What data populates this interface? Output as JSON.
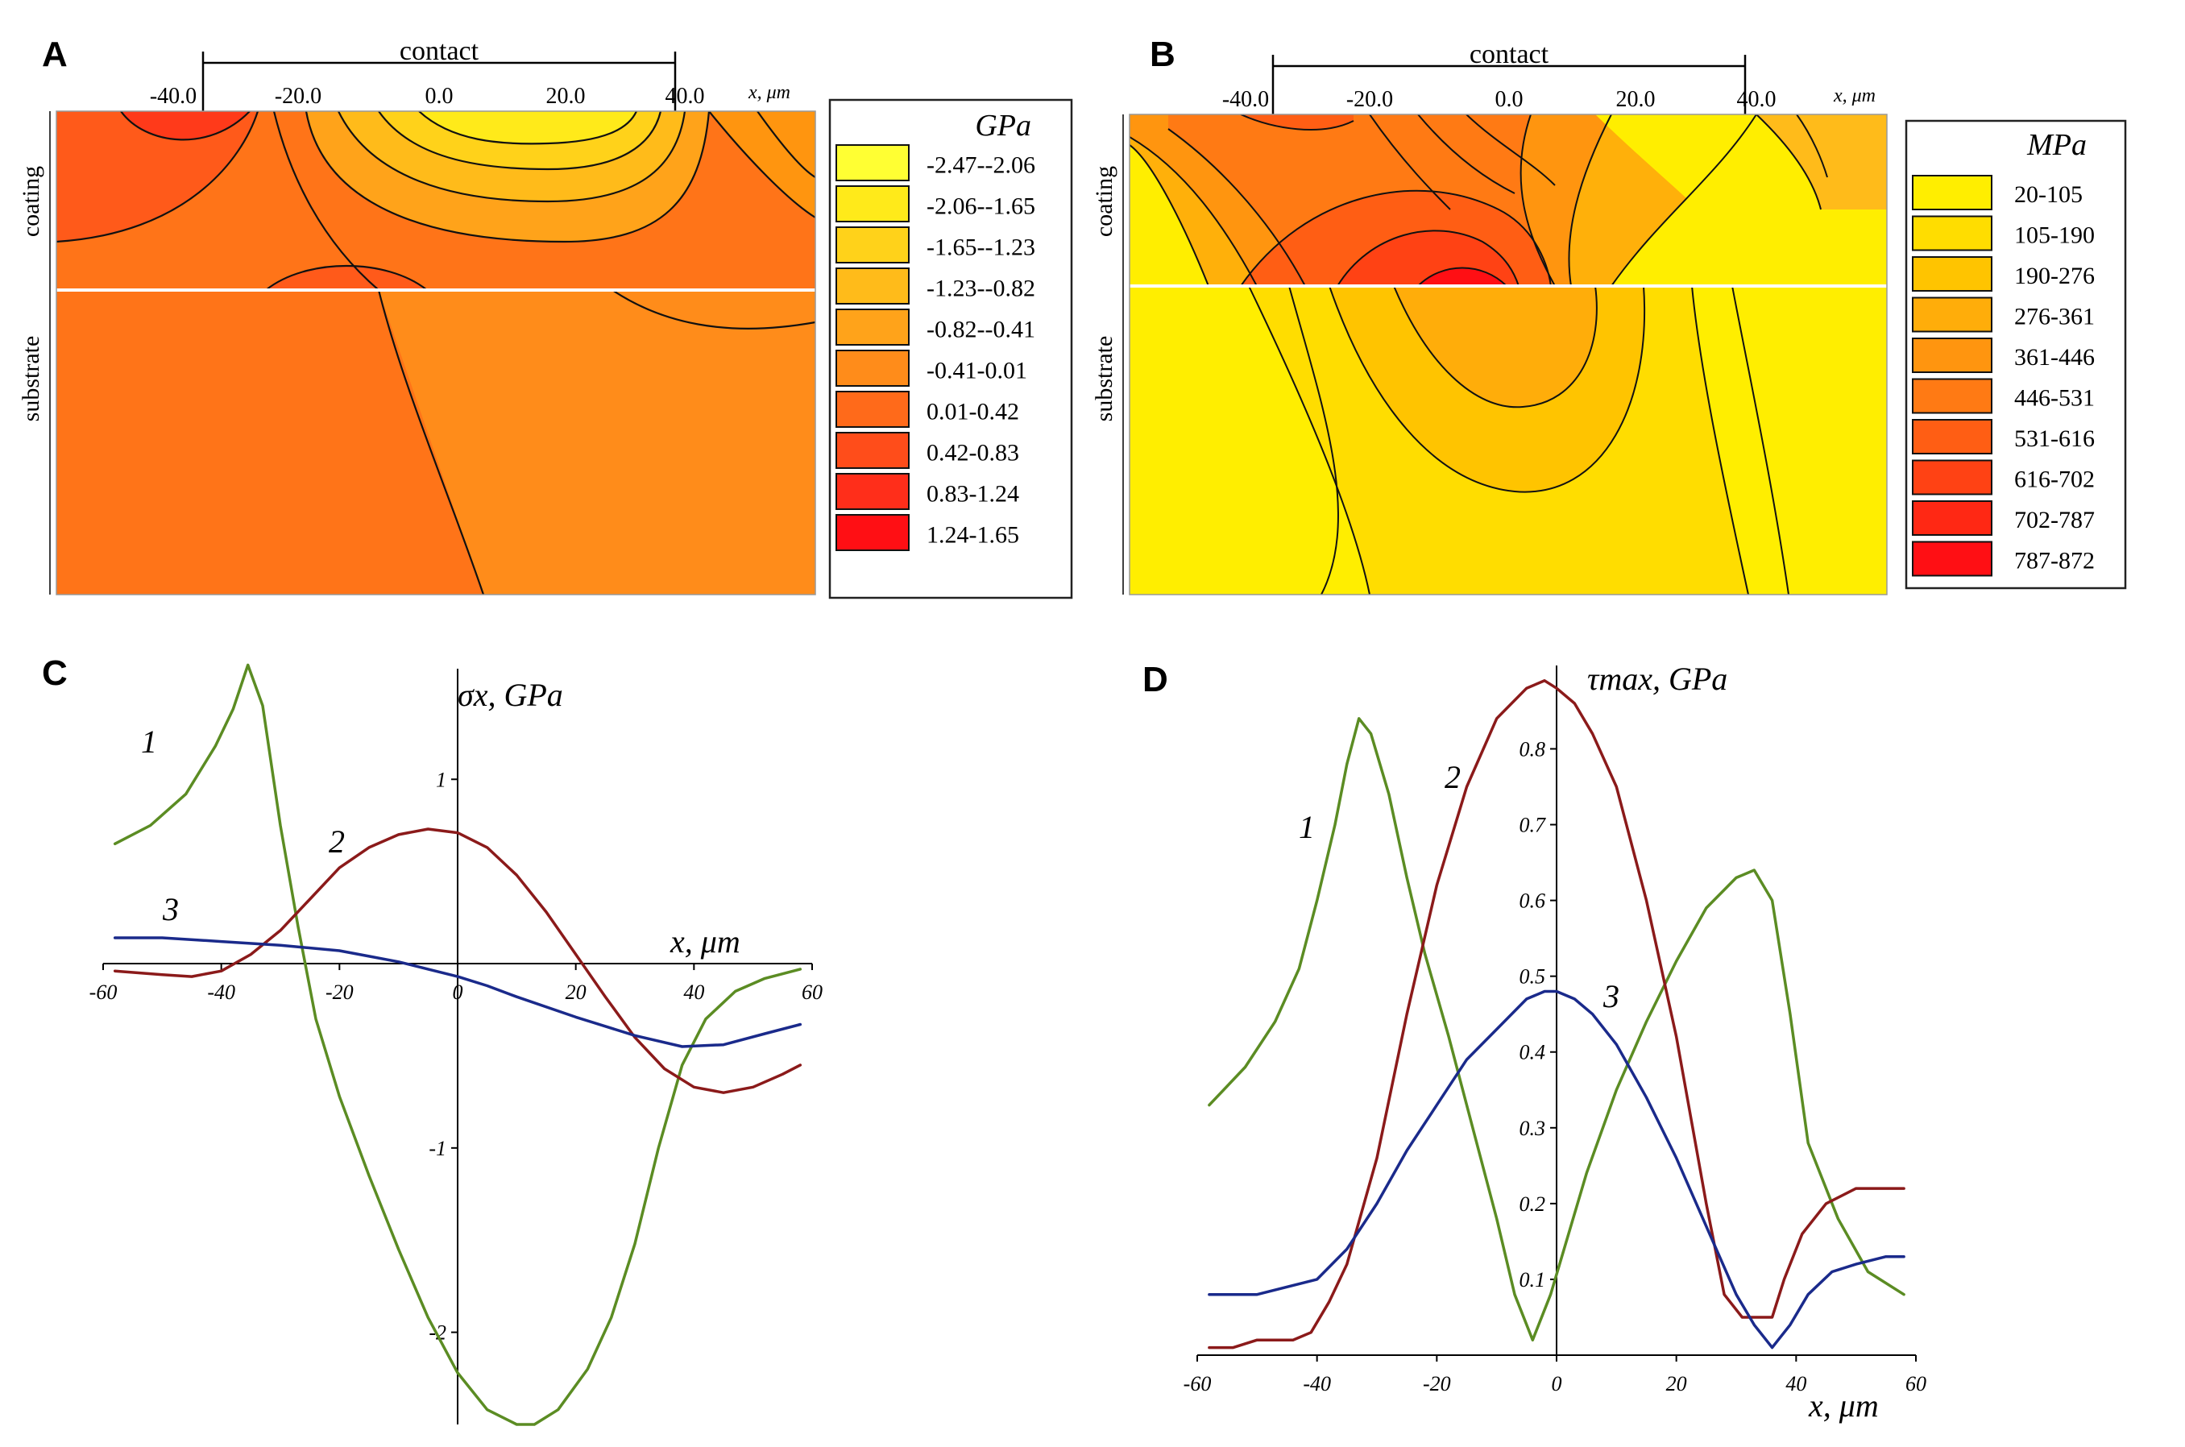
{
  "panels": {
    "A": {
      "label": "A",
      "contact_label": "contact",
      "x_ticks": [
        "-40.0",
        "-20.0",
        "0.0",
        "20.0",
        "40.0"
      ],
      "x_unit": "x, μm",
      "layer_labels": [
        "coating",
        "substrate"
      ],
      "legend_title": "GPa",
      "legend": [
        {
          "label": "-2.47--2.06",
          "color": "#ffff33"
        },
        {
          "label": "-2.06--1.65",
          "color": "#ffea1a"
        },
        {
          "label": "-1.65--1.23",
          "color": "#ffd21a"
        },
        {
          "label": "-1.23--0.82",
          "color": "#ffbb1a"
        },
        {
          "label": "-0.82--0.41",
          "color": "#ffa31a"
        },
        {
          "label": "-0.41-0.01",
          "color": "#ff8c1a"
        },
        {
          "label": "0.01-0.42",
          "color": "#ff6a1a"
        },
        {
          "label": "0.42-0.83",
          "color": "#ff4d1a"
        },
        {
          "label": "0.83-1.24",
          "color": "#ff2e1a"
        },
        {
          "label": "1.24-1.65",
          "color": "#ff0f14"
        }
      ]
    },
    "B": {
      "label": "B",
      "contact_label": "contact",
      "x_ticks": [
        "-40.0",
        "-20.0",
        "0.0",
        "20.0",
        "40.0"
      ],
      "x_unit": "x, μm",
      "layer_labels": [
        "coating",
        "substrate"
      ],
      "legend_title": "MPa",
      "legend": [
        {
          "label": "20-105",
          "color": "#ffee00"
        },
        {
          "label": "105-190",
          "color": "#ffdd00"
        },
        {
          "label": "190-276",
          "color": "#ffc400"
        },
        {
          "label": "276-361",
          "color": "#ffad0a"
        },
        {
          "label": "361-446",
          "color": "#ff950f"
        },
        {
          "label": "446-531",
          "color": "#ff7a14"
        },
        {
          "label": "531-616",
          "color": "#ff5e14"
        },
        {
          "label": "616-702",
          "color": "#ff4214"
        },
        {
          "label": "702-787",
          "color": "#ff2814"
        },
        {
          "label": "787-872",
          "color": "#ff0f14"
        }
      ]
    }
  },
  "chart_data": [
    {
      "panel": "C",
      "type": "line",
      "title": "",
      "ylabel": "σx, GPa",
      "xlabel": "x, μm",
      "xlim": [
        -60,
        60
      ],
      "ylim": [
        -2.5,
        1.6
      ],
      "x_ticks": [
        -60,
        -40,
        -20,
        0,
        20,
        40,
        60
      ],
      "x_tick_labels": [
        "-60",
        "-40",
        "-20",
        "0",
        "20",
        "40",
        "60"
      ],
      "y_ticks": [
        1,
        -1,
        -2
      ],
      "y_tick_labels": [
        "1",
        "-1",
        "-2"
      ],
      "series": [
        {
          "name": "1",
          "color": "#5b8c23",
          "x": [
            -58,
            -52,
            -46,
            -41,
            -38,
            -35.5,
            -33,
            -30,
            -27,
            -24,
            -20,
            -15,
            -10,
            -5,
            0,
            5,
            10,
            13,
            17,
            22,
            26,
            30,
            34,
            38,
            42,
            47,
            52,
            58
          ],
          "y": [
            0.65,
            0.75,
            0.92,
            1.18,
            1.38,
            1.62,
            1.4,
            0.75,
            0.2,
            -0.3,
            -0.72,
            -1.15,
            -1.55,
            -1.92,
            -2.22,
            -2.42,
            -2.5,
            -2.5,
            -2.42,
            -2.2,
            -1.92,
            -1.52,
            -1.0,
            -0.55,
            -0.3,
            -0.15,
            -0.08,
            -0.03
          ]
        },
        {
          "name": "2",
          "color": "#8b1a1a",
          "x": [
            -58,
            -50,
            -45,
            -40,
            -35,
            -30,
            -25,
            -20,
            -15,
            -10,
            -5,
            0,
            5,
            10,
            15,
            20,
            25,
            30,
            35,
            40,
            45,
            50,
            55,
            58
          ],
          "y": [
            -0.04,
            -0.06,
            -0.07,
            -0.04,
            0.05,
            0.18,
            0.35,
            0.52,
            0.63,
            0.7,
            0.73,
            0.71,
            0.63,
            0.48,
            0.28,
            0.05,
            -0.18,
            -0.4,
            -0.57,
            -0.67,
            -0.7,
            -0.67,
            -0.6,
            -0.55
          ]
        },
        {
          "name": "3",
          "color": "#1a2a8b",
          "x": [
            -58,
            -50,
            -40,
            -30,
            -20,
            -15,
            -10,
            -5,
            0,
            5,
            10,
            20,
            30,
            38,
            45,
            52,
            58
          ],
          "y": [
            0.14,
            0.14,
            0.12,
            0.1,
            0.07,
            0.04,
            0.01,
            -0.03,
            -0.07,
            -0.12,
            -0.18,
            -0.29,
            -0.39,
            -0.45,
            -0.44,
            -0.38,
            -0.33
          ]
        }
      ]
    },
    {
      "panel": "D",
      "type": "line",
      "title": "",
      "ylabel": "τmax, GPa",
      "xlabel": "x, μm",
      "xlim": [
        -60,
        60
      ],
      "ylim": [
        0,
        0.91
      ],
      "x_ticks": [
        -60,
        -40,
        -20,
        0,
        20,
        40,
        60
      ],
      "x_tick_labels": [
        "-60",
        "-40",
        "-20",
        "0",
        "20",
        "40",
        "60"
      ],
      "y_ticks": [
        0.1,
        0.2,
        0.3,
        0.4,
        0.5,
        0.6,
        0.7,
        0.8
      ],
      "y_tick_labels": [
        "0.1",
        "0.2",
        "0.3",
        "0.4",
        "0.5",
        "0.6",
        "0.7",
        "0.8"
      ],
      "series": [
        {
          "name": "1",
          "color": "#5b8c23",
          "x": [
            -58,
            -52,
            -47,
            -43,
            -40,
            -37,
            -35,
            -33,
            -31,
            -28,
            -25,
            -22,
            -18,
            -14,
            -10,
            -7,
            -4,
            -1,
            2,
            5,
            10,
            15,
            20,
            25,
            30,
            33,
            36,
            39,
            42,
            47,
            52,
            58
          ],
          "y": [
            0.33,
            0.38,
            0.44,
            0.51,
            0.6,
            0.7,
            0.78,
            0.84,
            0.82,
            0.74,
            0.63,
            0.53,
            0.42,
            0.3,
            0.18,
            0.08,
            0.02,
            0.08,
            0.16,
            0.24,
            0.35,
            0.44,
            0.52,
            0.59,
            0.63,
            0.64,
            0.6,
            0.45,
            0.28,
            0.18,
            0.11,
            0.08
          ]
        },
        {
          "name": "2",
          "color": "#8b1a1a",
          "x": [
            -58,
            -54,
            -50,
            -47,
            -44,
            -41,
            -38,
            -35,
            -30,
            -25,
            -20,
            -15,
            -10,
            -5,
            -2,
            0,
            3,
            6,
            10,
            15,
            20,
            25,
            28,
            31,
            34,
            36,
            38,
            41,
            45,
            50,
            54,
            58
          ],
          "y": [
            0.01,
            0.01,
            0.02,
            0.02,
            0.02,
            0.03,
            0.07,
            0.12,
            0.26,
            0.45,
            0.62,
            0.75,
            0.84,
            0.88,
            0.89,
            0.88,
            0.86,
            0.82,
            0.75,
            0.6,
            0.42,
            0.2,
            0.08,
            0.05,
            0.05,
            0.05,
            0.1,
            0.16,
            0.2,
            0.22,
            0.22,
            0.22
          ]
        },
        {
          "name": "3",
          "color": "#1a2a8b",
          "x": [
            -58,
            -50,
            -45,
            -40,
            -35,
            -30,
            -25,
            -20,
            -15,
            -10,
            -5,
            -2,
            0,
            3,
            6,
            10,
            15,
            20,
            25,
            30,
            33,
            36,
            39,
            42,
            46,
            50,
            55,
            58
          ],
          "y": [
            0.08,
            0.08,
            0.09,
            0.1,
            0.14,
            0.2,
            0.27,
            0.33,
            0.39,
            0.43,
            0.47,
            0.48,
            0.48,
            0.47,
            0.45,
            0.41,
            0.34,
            0.26,
            0.17,
            0.08,
            0.04,
            0.01,
            0.04,
            0.08,
            0.11,
            0.12,
            0.13,
            0.13
          ]
        }
      ]
    }
  ]
}
